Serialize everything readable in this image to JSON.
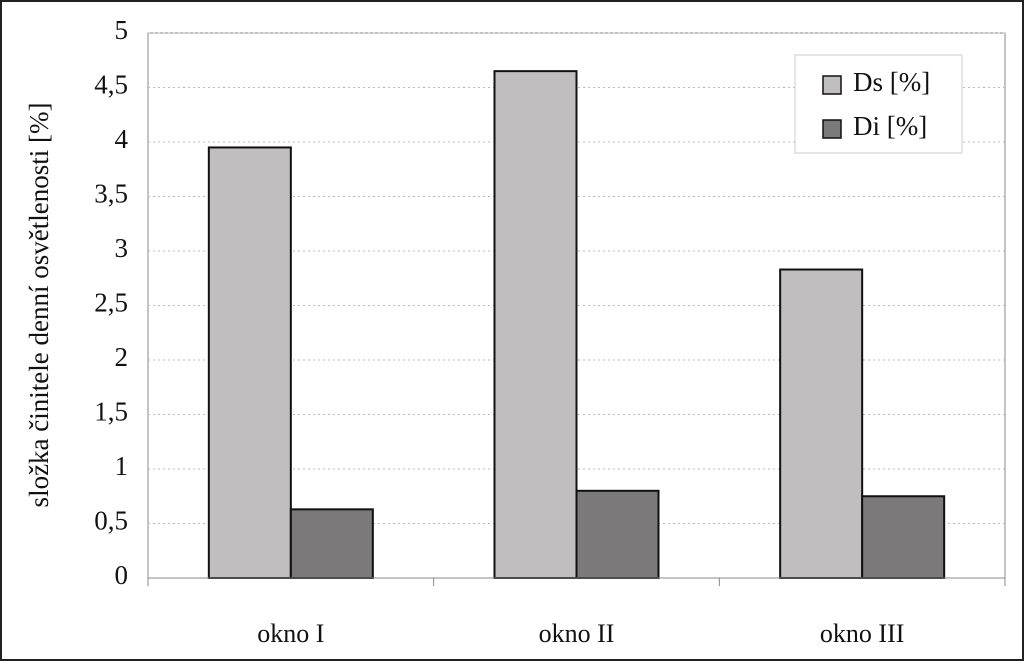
{
  "chart_data": {
    "type": "bar",
    "y_label": "složka činitele denní osvětlenosti [%]",
    "categories": [
      "okno I",
      "okno II",
      "okno III"
    ],
    "series": [
      {
        "name": "Ds [%]",
        "color": "#c0bebe",
        "values": [
          3.95,
          4.65,
          2.83
        ]
      },
      {
        "name": "Di [%]",
        "color": "#7b7979",
        "values": [
          0.63,
          0.8,
          0.75
        ]
      }
    ],
    "ylim": [
      0,
      5
    ],
    "yticks": [
      0,
      {
        "value": 0.5,
        "label": "0,5"
      },
      1,
      {
        "value": 1.5,
        "label": "1,5"
      },
      2,
      {
        "value": 2.5,
        "label": "2,5"
      },
      3,
      {
        "value": 3.5,
        "label": "3,5"
      },
      4,
      {
        "value": 4.5,
        "label": "4,5"
      },
      5
    ],
    "grid": true,
    "legend": "top-right"
  }
}
